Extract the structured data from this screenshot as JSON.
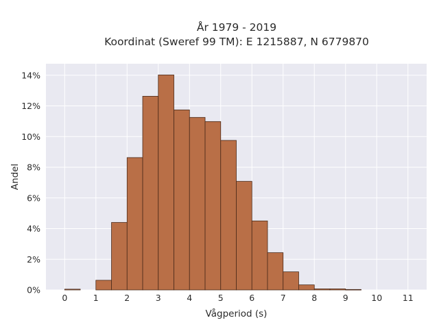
{
  "chart_data": {
    "type": "bar",
    "title_lines": [
      "År 1979 - 2019",
      "Koordinat (Sweref 99 TM): E 1215887, N 6779870"
    ],
    "xlabel": "Vågperiod (s)",
    "ylabel": "Andel",
    "bin_width": 0.5,
    "bins": [
      {
        "x0": 0.0,
        "value": 0.0005
      },
      {
        "x0": 0.5,
        "value": 0.0
      },
      {
        "x0": 1.0,
        "value": 0.0063
      },
      {
        "x0": 1.5,
        "value": 0.044
      },
      {
        "x0": 2.0,
        "value": 0.0863
      },
      {
        "x0": 2.5,
        "value": 0.1263
      },
      {
        "x0": 3.0,
        "value": 0.1402
      },
      {
        "x0": 3.5,
        "value": 0.1174
      },
      {
        "x0": 4.0,
        "value": 0.1125
      },
      {
        "x0": 4.5,
        "value": 0.1098
      },
      {
        "x0": 5.0,
        "value": 0.0975
      },
      {
        "x0": 5.5,
        "value": 0.0708
      },
      {
        "x0": 6.0,
        "value": 0.045
      },
      {
        "x0": 6.5,
        "value": 0.0243
      },
      {
        "x0": 7.0,
        "value": 0.0118
      },
      {
        "x0": 7.5,
        "value": 0.0033
      },
      {
        "x0": 8.0,
        "value": 0.0007
      },
      {
        "x0": 8.5,
        "value": 0.0007
      },
      {
        "x0": 9.0,
        "value": 0.0003
      }
    ],
    "xlim": [
      -0.6,
      11.6
    ],
    "ylim": [
      0,
      0.1475
    ],
    "xticks": [
      0,
      1,
      2,
      3,
      4,
      5,
      6,
      7,
      8,
      9,
      10,
      11
    ],
    "xtick_labels": [
      "0",
      "1",
      "2",
      "3",
      "4",
      "5",
      "6",
      "7",
      "8",
      "9",
      "10",
      "11"
    ],
    "yticks": [
      0,
      0.02,
      0.04,
      0.06,
      0.08,
      0.1,
      0.12,
      0.14
    ],
    "ytick_labels": [
      "0%",
      "2%",
      "4%",
      "6%",
      "8%",
      "10%",
      "12%",
      "14%"
    ],
    "grid": true,
    "legend": false,
    "colors": {
      "bar_fill": "#b96f47",
      "bar_edge": "#4a2a1a",
      "plot_background": "#e9e9f1",
      "grid": "#ffffff"
    }
  }
}
